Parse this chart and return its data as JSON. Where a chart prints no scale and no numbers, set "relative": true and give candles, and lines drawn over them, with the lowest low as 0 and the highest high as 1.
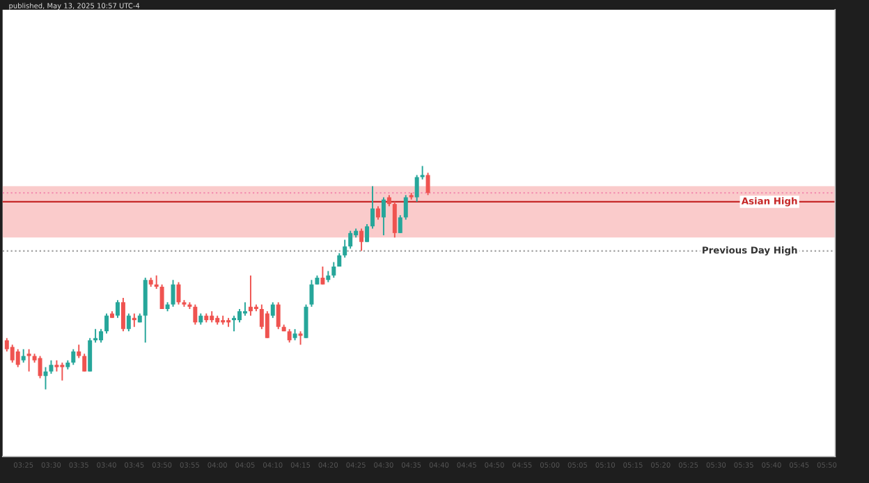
{
  "chart_data": {
    "type": "candlestick",
    "title": "published, May 13, 2025 10:57 UTC-4",
    "relative": true,
    "x": [
      3.3667,
      3.3833,
      3.4,
      3.4167,
      3.4333,
      3.45,
      3.4667,
      3.4833,
      3.5,
      3.5167,
      3.5333,
      3.55,
      3.5667,
      3.5833,
      3.6,
      3.6167,
      3.6333,
      3.65,
      3.6667,
      3.6833,
      3.7,
      3.7167,
      3.7333,
      3.75,
      3.7667,
      3.7833,
      3.8,
      3.8167,
      3.8333,
      3.85,
      3.8667,
      3.8833,
      3.9,
      3.9167,
      3.9333,
      3.95,
      3.9667,
      3.9833,
      4.0,
      4.0167,
      4.0333,
      4.05,
      4.0667,
      4.0833,
      4.1,
      4.1167,
      4.1333,
      4.15,
      4.1667,
      4.1833,
      4.2,
      4.2167,
      4.2333,
      4.25,
      4.2667,
      4.2833,
      4.3,
      4.3167,
      4.3333,
      4.35,
      4.3667,
      4.3833,
      4.4,
      4.4167,
      4.4333,
      4.45,
      4.4667,
      4.4833,
      4.5,
      4.5167,
      4.5333,
      4.55,
      4.5667,
      4.5833,
      4.6,
      4.6167,
      4.6333
    ],
    "ohlc": [
      [
        0.22,
        0.23,
        0.17,
        0.18
      ],
      [
        0.19,
        0.2,
        0.12,
        0.13
      ],
      [
        0.17,
        0.18,
        0.1,
        0.11
      ],
      [
        0.13,
        0.18,
        0.12,
        0.15
      ],
      [
        0.16,
        0.18,
        0.08,
        0.15
      ],
      [
        0.15,
        0.16,
        0.12,
        0.13
      ],
      [
        0.14,
        0.15,
        0.05,
        0.06
      ],
      [
        0.06,
        0.1,
        0.0,
        0.08
      ],
      [
        0.08,
        0.13,
        0.07,
        0.11
      ],
      [
        0.11,
        0.13,
        0.08,
        0.1
      ],
      [
        0.11,
        0.12,
        0.04,
        0.1
      ],
      [
        0.1,
        0.13,
        0.09,
        0.12
      ],
      [
        0.12,
        0.18,
        0.11,
        0.17
      ],
      [
        0.17,
        0.2,
        0.14,
        0.15
      ],
      [
        0.15,
        0.16,
        0.08,
        0.08
      ],
      [
        0.08,
        0.23,
        0.08,
        0.22
      ],
      [
        0.22,
        0.27,
        0.21,
        0.23
      ],
      [
        0.22,
        0.27,
        0.21,
        0.26
      ],
      [
        0.26,
        0.34,
        0.25,
        0.33
      ],
      [
        0.34,
        0.35,
        0.32,
        0.32
      ],
      [
        0.33,
        0.4,
        0.32,
        0.39
      ],
      [
        0.39,
        0.41,
        0.26,
        0.27
      ],
      [
        0.27,
        0.34,
        0.26,
        0.33
      ],
      [
        0.32,
        0.34,
        0.28,
        0.31
      ],
      [
        0.3,
        0.34,
        0.3,
        0.33
      ],
      [
        0.33,
        0.5,
        0.21,
        0.49
      ],
      [
        0.49,
        0.5,
        0.46,
        0.47
      ],
      [
        0.47,
        0.51,
        0.45,
        0.46
      ],
      [
        0.46,
        0.47,
        0.36,
        0.36
      ],
      [
        0.36,
        0.39,
        0.35,
        0.38
      ],
      [
        0.38,
        0.49,
        0.37,
        0.47
      ],
      [
        0.47,
        0.48,
        0.38,
        0.39
      ],
      [
        0.39,
        0.4,
        0.37,
        0.38
      ],
      [
        0.38,
        0.39,
        0.36,
        0.37
      ],
      [
        0.37,
        0.38,
        0.29,
        0.3
      ],
      [
        0.3,
        0.34,
        0.29,
        0.33
      ],
      [
        0.33,
        0.34,
        0.3,
        0.31
      ],
      [
        0.33,
        0.35,
        0.3,
        0.31
      ],
      [
        0.32,
        0.33,
        0.29,
        0.3
      ],
      [
        0.31,
        0.33,
        0.29,
        0.3
      ],
      [
        0.31,
        0.32,
        0.28,
        0.3
      ],
      [
        0.31,
        0.33,
        0.26,
        0.32
      ],
      [
        0.31,
        0.36,
        0.3,
        0.35
      ],
      [
        0.34,
        0.39,
        0.33,
        0.35
      ],
      [
        0.37,
        0.51,
        0.33,
        0.35
      ],
      [
        0.37,
        0.38,
        0.35,
        0.36
      ],
      [
        0.36,
        0.38,
        0.27,
        0.28
      ],
      [
        0.34,
        0.35,
        0.23,
        0.23
      ],
      [
        0.33,
        0.39,
        0.32,
        0.38
      ],
      [
        0.38,
        0.39,
        0.27,
        0.28
      ],
      [
        0.28,
        0.29,
        0.26,
        0.26
      ],
      [
        0.26,
        0.27,
        0.21,
        0.22
      ],
      [
        0.23,
        0.27,
        0.22,
        0.25
      ],
      [
        0.25,
        0.26,
        0.2,
        0.24
      ],
      [
        0.23,
        0.38,
        0.23,
        0.37
      ],
      [
        0.38,
        0.49,
        0.37,
        0.47
      ],
      [
        0.47,
        0.51,
        0.47,
        0.5
      ],
      [
        0.5,
        0.55,
        0.47,
        0.47
      ],
      [
        0.49,
        0.53,
        0.48,
        0.51
      ],
      [
        0.51,
        0.57,
        0.5,
        0.55
      ],
      [
        0.55,
        0.61,
        0.55,
        0.6
      ],
      [
        0.6,
        0.67,
        0.59,
        0.64
      ],
      [
        0.64,
        0.71,
        0.63,
        0.7
      ],
      [
        0.69,
        0.72,
        0.68,
        0.71
      ],
      [
        0.71,
        0.72,
        0.62,
        0.66
      ],
      [
        0.66,
        0.74,
        0.66,
        0.73
      ],
      [
        0.73,
        0.91,
        0.72,
        0.81
      ],
      [
        0.81,
        0.82,
        0.76,
        0.77
      ],
      [
        0.77,
        0.86,
        0.69,
        0.85
      ],
      [
        0.86,
        0.87,
        0.82,
        0.83
      ],
      [
        0.83,
        0.84,
        0.68,
        0.7
      ],
      [
        0.7,
        0.78,
        0.7,
        0.77
      ],
      [
        0.77,
        0.87,
        0.76,
        0.86
      ],
      [
        0.87,
        0.88,
        0.85,
        0.86
      ],
      [
        0.86,
        0.96,
        0.84,
        0.95
      ],
      [
        0.95,
        1.0,
        0.94,
        0.96
      ],
      [
        0.96,
        0.97,
        0.87,
        0.88
      ]
    ],
    "xlim": [
      3.354,
      5.858
    ],
    "xticks": [
      {
        "value": 3.4167,
        "label": "03:25"
      },
      {
        "value": 3.5,
        "label": "03:30"
      },
      {
        "value": 3.5833,
        "label": "03:35"
      },
      {
        "value": 3.6667,
        "label": "03:40"
      },
      {
        "value": 3.75,
        "label": "03:45"
      },
      {
        "value": 3.8333,
        "label": "03:50"
      },
      {
        "value": 3.9167,
        "label": "03:55"
      },
      {
        "value": 4.0,
        "label": "04:00"
      },
      {
        "value": 4.0833,
        "label": "04:05"
      },
      {
        "value": 4.1667,
        "label": "04:10"
      },
      {
        "value": 4.25,
        "label": "04:15"
      },
      {
        "value": 4.3333,
        "label": "04:20"
      },
      {
        "value": 4.4167,
        "label": "04:25"
      },
      {
        "value": 4.5,
        "label": "04:30"
      },
      {
        "value": 4.5833,
        "label": "04:35"
      },
      {
        "value": 4.6667,
        "label": "04:40"
      },
      {
        "value": 4.75,
        "label": "04:45"
      },
      {
        "value": 4.8333,
        "label": "04:50"
      },
      {
        "value": 4.9167,
        "label": "04:55"
      },
      {
        "value": 5.0,
        "label": "05:00"
      },
      {
        "value": 5.0833,
        "label": "05:05"
      },
      {
        "value": 5.1667,
        "label": "05:10"
      },
      {
        "value": 5.25,
        "label": "05:15"
      },
      {
        "value": 5.3333,
        "label": "05:20"
      },
      {
        "value": 5.4167,
        "label": "05:25"
      },
      {
        "value": 5.5,
        "label": "05:30"
      },
      {
        "value": 5.5833,
        "label": "05:35"
      },
      {
        "value": 5.6667,
        "label": "05:40"
      },
      {
        "value": 5.75,
        "label": "05:45"
      },
      {
        "value": 5.8333,
        "label": "05:50"
      }
    ],
    "ref_lines": [
      {
        "axis": "y",
        "value": 0.62,
        "label": "Previous Day High",
        "color": "#9e9e9e",
        "line_style": "dotted"
      },
      {
        "axis": "y",
        "value": 0.84,
        "label": "Asian High",
        "color": "#c62828",
        "line_style": "solid"
      },
      {
        "axis": "y",
        "value": 0.88,
        "color": "#f48fb1",
        "line_style": "dotted"
      }
    ],
    "bands": [
      {
        "axis": "y",
        "from": 0.68,
        "to": 0.91,
        "color": "#f7a8a8"
      }
    ]
  }
}
